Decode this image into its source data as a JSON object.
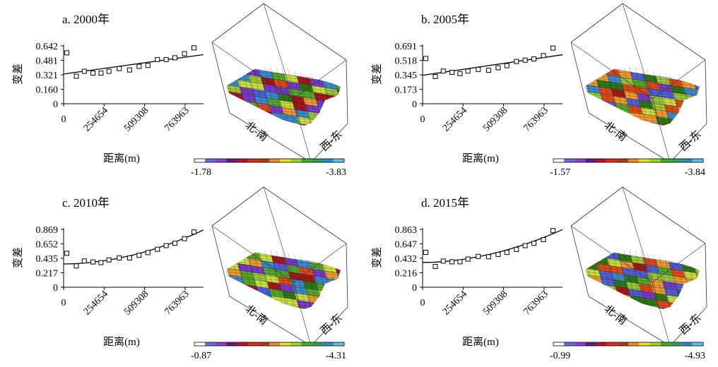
{
  "chart_data": [
    {
      "id": "a",
      "type": "scatter",
      "title": "a. 2000年",
      "xlabel": "距离(m)",
      "ylabel": "变差",
      "x_ticks": [
        "0",
        "254654",
        "509308",
        "763963"
      ],
      "y_ticks": [
        "0",
        "0.160",
        "0.321",
        "0.481",
        "0.642"
      ],
      "xlim": [
        0,
        880000
      ],
      "ylim": [
        0,
        0.642
      ],
      "points": {
        "x": [
          20000,
          80000,
          130000,
          185000,
          235000,
          285000,
          350000,
          415000,
          475000,
          530000,
          590000,
          645000,
          700000,
          760000,
          820000
        ],
        "y": [
          0.565,
          0.305,
          0.36,
          0.34,
          0.34,
          0.36,
          0.39,
          0.375,
          0.415,
          0.425,
          0.49,
          0.49,
          0.51,
          0.555,
          0.62
        ]
      },
      "fit": {
        "x": [
          0,
          880000
        ],
        "y": [
          0.33,
          0.545
        ]
      },
      "surface_dir_labels": [
        "北-南",
        "西-东"
      ],
      "colorbar": {
        "min_label": "-1.78",
        "max_label": "-3.83"
      }
    },
    {
      "id": "b",
      "type": "scatter",
      "title": "b. 2005年",
      "xlabel": "距离(m)",
      "ylabel": "变差",
      "x_ticks": [
        "0",
        "254654",
        "509308",
        "763963"
      ],
      "y_ticks": [
        "0",
        "0.173",
        "0.345",
        "0.518",
        "0.691"
      ],
      "xlim": [
        0,
        880000
      ],
      "ylim": [
        0,
        0.691
      ],
      "points": {
        "x": [
          20000,
          80000,
          130000,
          185000,
          235000,
          285000,
          350000,
          415000,
          475000,
          530000,
          590000,
          645000,
          700000,
          760000,
          820000
        ],
        "y": [
          0.54,
          0.325,
          0.39,
          0.375,
          0.36,
          0.39,
          0.41,
          0.4,
          0.43,
          0.455,
          0.505,
          0.52,
          0.535,
          0.575,
          0.665
        ]
      },
      "fit": {
        "x": [
          0,
          880000
        ],
        "y": [
          0.34,
          0.585
        ]
      },
      "surface_dir_labels": [
        "北-南",
        "西-东"
      ],
      "colorbar": {
        "min_label": "-1.57",
        "max_label": "-3.84"
      }
    },
    {
      "id": "c",
      "type": "scatter",
      "title": "c. 2010年",
      "xlabel": "距离(m)",
      "ylabel": "变差",
      "x_ticks": [
        "0",
        "254654",
        "509308",
        "763963"
      ],
      "y_ticks": [
        "0",
        "0.217",
        "0.435",
        "0.652",
        "0.869"
      ],
      "xlim": [
        0,
        880000
      ],
      "ylim": [
        0,
        0.869
      ],
      "points": {
        "x": [
          20000,
          80000,
          130000,
          185000,
          235000,
          285000,
          350000,
          415000,
          475000,
          530000,
          590000,
          645000,
          700000,
          760000,
          820000
        ],
        "y": [
          0.51,
          0.32,
          0.395,
          0.38,
          0.37,
          0.41,
          0.44,
          0.44,
          0.48,
          0.52,
          0.57,
          0.625,
          0.66,
          0.73,
          0.83
        ]
      },
      "fit": {
        "x": [
          0,
          880000
        ],
        "y": [
          0.35,
          0.86
        ],
        "curve": true
      },
      "surface_dir_labels": [
        "北-南",
        "西-东"
      ],
      "colorbar": {
        "min_label": "-0.87",
        "max_label": "-4.31"
      }
    },
    {
      "id": "d",
      "type": "scatter",
      "title": "d. 2015年",
      "xlabel": "距离(m)",
      "ylabel": "变差",
      "x_ticks": [
        "0",
        "254654",
        "509308",
        "763963"
      ],
      "y_ticks": [
        "0",
        "0.216",
        "0.432",
        "0.647",
        "0.863"
      ],
      "xlim": [
        0,
        880000
      ],
      "ylim": [
        0,
        0.863
      ],
      "points": {
        "x": [
          20000,
          80000,
          130000,
          185000,
          235000,
          285000,
          350000,
          415000,
          475000,
          530000,
          590000,
          645000,
          700000,
          760000,
          820000
        ],
        "y": [
          0.52,
          0.31,
          0.39,
          0.38,
          0.38,
          0.42,
          0.46,
          0.455,
          0.49,
          0.52,
          0.565,
          0.62,
          0.655,
          0.71,
          0.845
        ]
      },
      "fit": {
        "x": [
          0,
          880000
        ],
        "y": [
          0.37,
          0.86
        ],
        "curve": true
      },
      "surface_dir_labels": [
        "北-南",
        "西-东"
      ],
      "colorbar": {
        "min_label": "-0.99",
        "max_label": "-4.93"
      }
    }
  ],
  "colors": {
    "colorbar": [
      "#ffffff",
      "#6a6adc",
      "#8a3fd0",
      "#5a1f7a",
      "#b8102a",
      "#e02a1a",
      "#b03a10",
      "#f08a1a",
      "#e8e020",
      "#a0d820",
      "#40b020",
      "#30a060",
      "#2890c0",
      "#60c0e8"
    ],
    "surface": [
      "#2e7a1a",
      "#55a82a",
      "#9ac83a",
      "#c8e040",
      "#e04a18",
      "#a8181a",
      "#f09a30",
      "#7a3ac8",
      "#5060d8",
      "#3a8ad0"
    ]
  }
}
